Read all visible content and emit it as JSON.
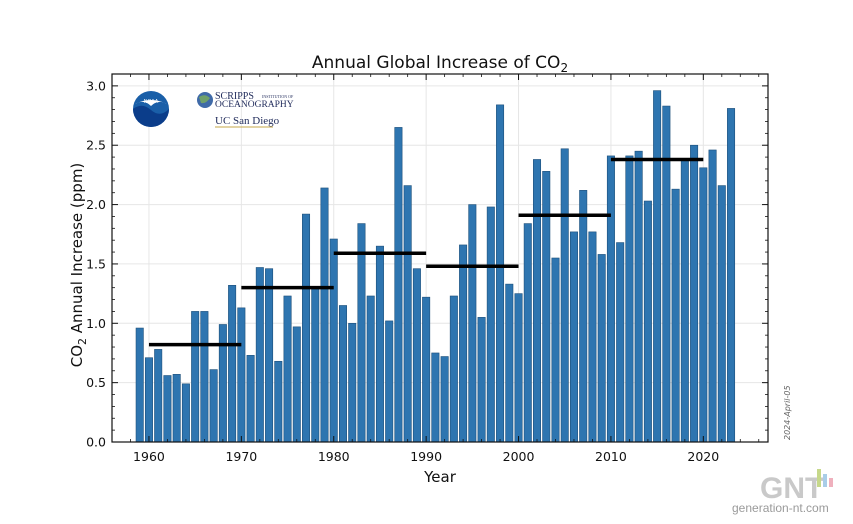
{
  "chart_data": {
    "type": "bar",
    "title": "Annual Global Increase of CO",
    "title_subscript": "2",
    "xlabel": "Year",
    "ylabel_prefix": "CO",
    "ylabel_subscript": "2",
    "ylabel_suffix": " Annual Increase (ppm)",
    "xlim": [
      1956,
      2027
    ],
    "ylim": [
      0,
      3.1
    ],
    "grid": true,
    "bar_color": "#2e75b0",
    "average_line_color": "#000000",
    "x_ticks": [
      1960,
      1970,
      1980,
      1990,
      2000,
      2010,
      2020
    ],
    "x_tick_labels": [
      "1960",
      "1970",
      "1980",
      "1990",
      "2000",
      "2010",
      "2020"
    ],
    "y_ticks": [
      0.0,
      0.5,
      1.0,
      1.5,
      2.0,
      2.5,
      3.0
    ],
    "y_tick_labels": [
      "0.0",
      "0.5",
      "1.0",
      "1.5",
      "2.0",
      "2.5",
      "3.0"
    ],
    "x": [
      1959,
      1960,
      1961,
      1962,
      1963,
      1964,
      1965,
      1966,
      1967,
      1968,
      1969,
      1970,
      1971,
      1972,
      1973,
      1974,
      1975,
      1976,
      1977,
      1978,
      1979,
      1980,
      1981,
      1982,
      1983,
      1984,
      1985,
      1986,
      1987,
      1988,
      1989,
      1990,
      1991,
      1992,
      1993,
      1994,
      1995,
      1996,
      1997,
      1998,
      1999,
      2000,
      2001,
      2002,
      2003,
      2004,
      2005,
      2006,
      2007,
      2008,
      2009,
      2010,
      2011,
      2012,
      2013,
      2014,
      2015,
      2016,
      2017,
      2018,
      2019,
      2020,
      2021,
      2022,
      2023
    ],
    "values": [
      0.96,
      0.71,
      0.78,
      0.56,
      0.57,
      0.49,
      1.1,
      1.1,
      0.61,
      0.99,
      1.32,
      1.13,
      0.73,
      1.47,
      1.46,
      0.68,
      1.23,
      0.97,
      1.92,
      1.29,
      2.14,
      1.71,
      1.15,
      1.0,
      1.84,
      1.23,
      1.65,
      1.02,
      2.65,
      2.16,
      1.46,
      1.22,
      0.75,
      0.72,
      1.23,
      1.66,
      2.0,
      1.05,
      1.98,
      2.84,
      1.33,
      1.25,
      1.84,
      2.38,
      2.28,
      1.55,
      2.47,
      1.77,
      2.12,
      1.77,
      1.58,
      2.41,
      1.68,
      2.41,
      2.45,
      2.03,
      2.96,
      2.83,
      2.13,
      2.38,
      2.5,
      2.31,
      2.46,
      2.16,
      2.81
    ],
    "decade_averages": [
      {
        "start": 1960,
        "end": 1970,
        "value": 0.82
      },
      {
        "start": 1970,
        "end": 1980,
        "value": 1.3
      },
      {
        "start": 1980,
        "end": 1990,
        "value": 1.59
      },
      {
        "start": 1990,
        "end": 2000,
        "value": 1.48
      },
      {
        "start": 2000,
        "end": 2010,
        "value": 1.91
      },
      {
        "start": 2010,
        "end": 2020,
        "value": 2.38
      }
    ]
  },
  "logos": {
    "noaa": "NOAA",
    "scripps_line1": "SCRIPPS",
    "scripps_small": "INSTITUTION OF",
    "scripps_line2": "OCEANOGRAPHY",
    "ucsd": "UC San Diego"
  },
  "datestamp": "2024-April-05",
  "watermark": {
    "brand": "GNT",
    "site": "generation-nt.com",
    "colors": [
      "#c6d88a",
      "#a9cde8",
      "#efb0bd"
    ]
  }
}
